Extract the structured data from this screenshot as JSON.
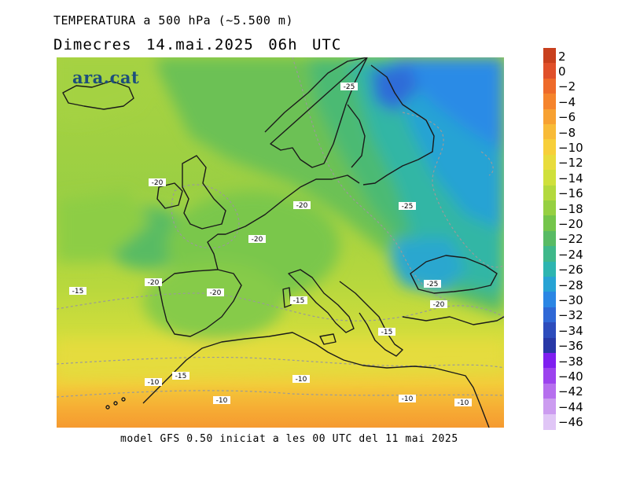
{
  "header": {
    "title": "TEMPERATURA a 500 hPa (~5.500 m)",
    "subtitle": "Dimecres  14.mai.2025 06h UTC"
  },
  "brand": "ara.cat",
  "footer": "model GFS 0.50 iniciat a les 00 UTC del 11 mai 2025",
  "contour_labels": [
    {
      "text": "-25"
    },
    {
      "text": "-20"
    },
    {
      "text": "-20"
    },
    {
      "text": "-25"
    },
    {
      "text": "-20"
    },
    {
      "text": "-20"
    },
    {
      "text": "-20"
    },
    {
      "text": "-15"
    },
    {
      "text": "-20"
    },
    {
      "text": "-15"
    },
    {
      "text": "-25"
    },
    {
      "text": "-20"
    },
    {
      "text": "-15"
    },
    {
      "text": "-10"
    },
    {
      "text": "-15"
    },
    {
      "text": "-10"
    },
    {
      "text": "-10"
    },
    {
      "text": "-10"
    },
    {
      "text": "-10"
    }
  ],
  "scale": {
    "unit_labels": [
      "2",
      "0",
      "−2",
      "−4",
      "−6",
      "−8",
      "−10",
      "−12",
      "−14",
      "−16",
      "−18",
      "−20",
      "−22",
      "−24",
      "−26",
      "−28",
      "−30",
      "−32",
      "−34",
      "−36",
      "−38",
      "−40",
      "−42",
      "−44",
      "−46"
    ],
    "colors": [
      "#c8401e",
      "#e0502a",
      "#ee6a2a",
      "#f5842c",
      "#f7a132",
      "#f8bb38",
      "#f7cf3a",
      "#e8dc3c",
      "#cfe03c",
      "#b3d93e",
      "#96d042",
      "#74c54b",
      "#58bb64",
      "#3fb88a",
      "#2db5b0",
      "#27a3d4",
      "#2b86e4",
      "#2f68d6",
      "#2d4cbc",
      "#2838a6",
      "#7f1ff0",
      "#9c43ee",
      "#b66fee",
      "#cc9cf0",
      "#e0c6f6"
    ]
  },
  "colors": {
    "coast": "#1a1a1a",
    "isoline": "#9a9a9a",
    "brand": "#1d4f7c"
  }
}
